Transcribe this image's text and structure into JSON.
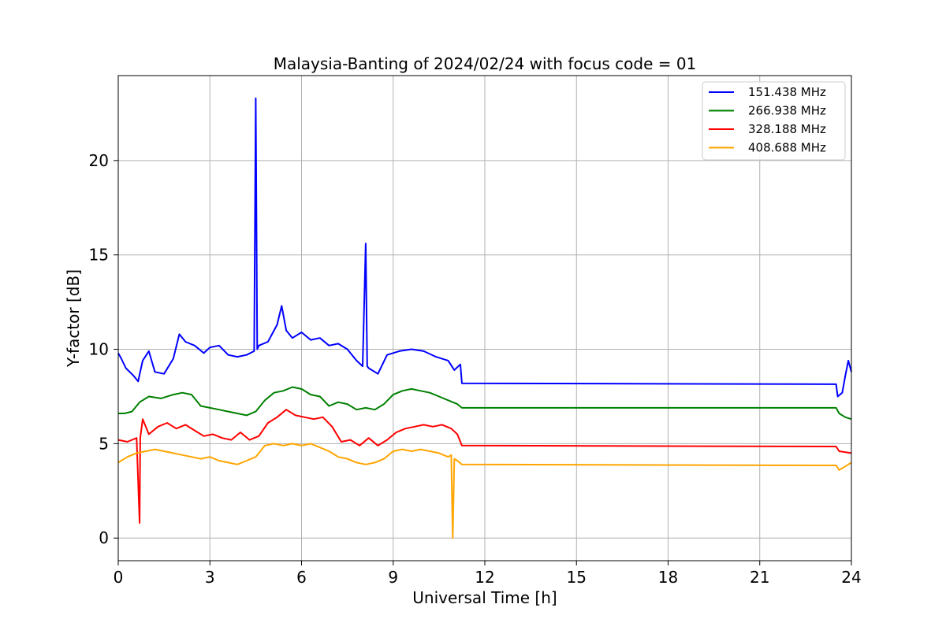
{
  "chart_data": {
    "type": "line",
    "title": "Malaysia-Banting of 2024/02/24 with focus code = 01",
    "xlabel": "Universal Time [h]",
    "ylabel": "Y-factor [dB]",
    "xlim": [
      0,
      24
    ],
    "ylim": [
      -1.2,
      24.5
    ],
    "xticks": [
      0,
      3,
      6,
      9,
      12,
      15,
      18,
      21,
      24
    ],
    "yticks": [
      0,
      5,
      10,
      15,
      20
    ],
    "grid": true,
    "legend_position": "top-right",
    "series": [
      {
        "name": "151.438 MHz",
        "color": "#0000ff",
        "x": [
          0,
          0.1,
          0.25,
          0.5,
          0.65,
          0.8,
          1.0,
          1.2,
          1.5,
          1.8,
          2.0,
          2.2,
          2.5,
          2.8,
          3.0,
          3.3,
          3.6,
          3.9,
          4.2,
          4.45,
          4.5,
          4.55,
          4.6,
          4.9,
          5.2,
          5.35,
          5.5,
          5.7,
          6.0,
          6.3,
          6.6,
          6.9,
          7.2,
          7.5,
          7.8,
          8.0,
          8.1,
          8.15,
          8.2,
          8.5,
          8.8,
          9.2,
          9.6,
          10.0,
          10.4,
          10.8,
          11.0,
          11.2,
          11.25,
          23.5,
          23.55,
          23.7,
          23.8,
          23.9,
          24.0
        ],
        "y": [
          9.8,
          9.5,
          9.0,
          8.6,
          8.3,
          9.4,
          9.9,
          8.8,
          8.7,
          9.5,
          10.8,
          10.4,
          10.2,
          9.8,
          10.1,
          10.2,
          9.7,
          9.6,
          9.7,
          9.9,
          23.3,
          10.0,
          10.2,
          10.4,
          11.3,
          12.3,
          11.0,
          10.6,
          10.9,
          10.5,
          10.6,
          10.2,
          10.3,
          10.0,
          9.4,
          9.1,
          15.6,
          9.1,
          9.0,
          8.7,
          9.7,
          9.9,
          10.0,
          9.9,
          9.6,
          9.4,
          8.9,
          9.2,
          8.2,
          8.15,
          7.5,
          7.7,
          8.6,
          9.4,
          8.8
        ]
      },
      {
        "name": "266.938 MHz",
        "color": "#008000",
        "x": [
          0,
          0.2,
          0.45,
          0.7,
          1.0,
          1.4,
          1.8,
          2.1,
          2.4,
          2.7,
          3.0,
          3.3,
          3.6,
          3.9,
          4.2,
          4.5,
          4.8,
          5.1,
          5.4,
          5.7,
          6.0,
          6.3,
          6.6,
          6.9,
          7.2,
          7.5,
          7.8,
          8.1,
          8.4,
          8.7,
          9.0,
          9.3,
          9.6,
          9.9,
          10.2,
          10.5,
          10.8,
          11.1,
          11.25,
          23.5,
          23.6,
          23.8,
          24.0
        ],
        "y": [
          6.6,
          6.6,
          6.7,
          7.2,
          7.5,
          7.4,
          7.6,
          7.7,
          7.6,
          7.0,
          6.9,
          6.8,
          6.7,
          6.6,
          6.5,
          6.7,
          7.3,
          7.7,
          7.8,
          8.0,
          7.9,
          7.6,
          7.5,
          7.0,
          7.2,
          7.1,
          6.8,
          6.9,
          6.8,
          7.1,
          7.6,
          7.8,
          7.9,
          7.8,
          7.7,
          7.5,
          7.3,
          7.1,
          6.9,
          6.9,
          6.6,
          6.4,
          6.3
        ]
      },
      {
        "name": "328.188 MHz",
        "color": "#ff0000",
        "x": [
          0,
          0.3,
          0.6,
          0.7,
          0.72,
          0.8,
          1.0,
          1.3,
          1.6,
          1.9,
          2.2,
          2.5,
          2.8,
          3.1,
          3.4,
          3.7,
          4.0,
          4.3,
          4.6,
          4.9,
          5.2,
          5.5,
          5.8,
          6.1,
          6.4,
          6.7,
          7.0,
          7.3,
          7.6,
          7.9,
          8.2,
          8.5,
          8.8,
          9.1,
          9.4,
          9.7,
          10.0,
          10.3,
          10.6,
          10.9,
          11.1,
          11.25,
          23.5,
          23.6,
          24.0
        ],
        "y": [
          5.2,
          5.1,
          5.3,
          0.8,
          5.3,
          6.3,
          5.5,
          5.9,
          6.1,
          5.8,
          6.0,
          5.7,
          5.4,
          5.5,
          5.3,
          5.2,
          5.6,
          5.2,
          5.4,
          6.1,
          6.4,
          6.8,
          6.5,
          6.4,
          6.3,
          6.4,
          5.9,
          5.1,
          5.2,
          4.9,
          5.3,
          4.9,
          5.2,
          5.6,
          5.8,
          5.9,
          6.0,
          5.9,
          6.0,
          5.8,
          5.5,
          4.9,
          4.85,
          4.6,
          4.5
        ]
      },
      {
        "name": "408.688 MHz",
        "color": "#ffa500",
        "x": [
          0,
          0.3,
          0.6,
          0.9,
          1.2,
          1.5,
          1.8,
          2.1,
          2.4,
          2.7,
          3.0,
          3.3,
          3.6,
          3.9,
          4.2,
          4.5,
          4.8,
          5.1,
          5.4,
          5.7,
          6.0,
          6.3,
          6.6,
          6.9,
          7.2,
          7.5,
          7.8,
          8.1,
          8.4,
          8.7,
          9.0,
          9.3,
          9.6,
          9.9,
          10.2,
          10.5,
          10.8,
          10.9,
          10.95,
          11.0,
          11.1,
          11.25,
          23.5,
          23.6,
          23.8,
          24.0
        ],
        "y": [
          4.0,
          4.3,
          4.5,
          4.6,
          4.7,
          4.6,
          4.5,
          4.4,
          4.3,
          4.2,
          4.3,
          4.1,
          4.0,
          3.9,
          4.1,
          4.3,
          4.9,
          5.0,
          4.9,
          5.0,
          4.9,
          5.0,
          4.8,
          4.6,
          4.3,
          4.2,
          4.0,
          3.9,
          4.0,
          4.2,
          4.6,
          4.7,
          4.6,
          4.7,
          4.6,
          4.5,
          4.3,
          4.4,
          0.0,
          4.2,
          4.1,
          3.9,
          3.85,
          3.6,
          3.8,
          4.0
        ]
      }
    ]
  }
}
